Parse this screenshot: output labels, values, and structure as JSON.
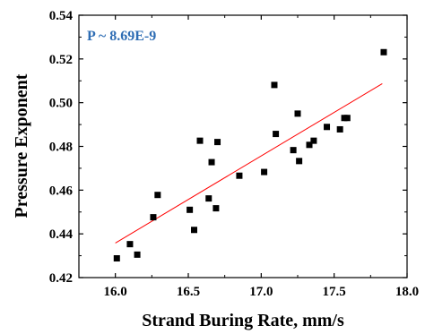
{
  "chart_data": {
    "type": "scatter",
    "xlabel": "Strand Buring Rate, mm/s",
    "ylabel": "Pressure Exponent",
    "annotation": "P ~ 8.69E-9",
    "xlim": [
      15.75,
      18.0
    ],
    "ylim": [
      0.42,
      0.54
    ],
    "x_ticks": [
      "16.0",
      "16.5",
      "17.0",
      "17.5",
      "18.0"
    ],
    "y_ticks": [
      "0.42",
      "0.44",
      "0.46",
      "0.48",
      "0.50",
      "0.52",
      "0.54"
    ],
    "grid": false,
    "series": [
      {
        "points": [
          [
            16.01,
            0.4288
          ],
          [
            16.1,
            0.4353
          ],
          [
            16.15,
            0.4305
          ],
          [
            16.26,
            0.4476
          ],
          [
            16.29,
            0.4578
          ],
          [
            16.51,
            0.451
          ],
          [
            16.54,
            0.4418
          ],
          [
            16.58,
            0.4826
          ],
          [
            16.64,
            0.4562
          ],
          [
            16.66,
            0.4728
          ],
          [
            16.69,
            0.4517
          ],
          [
            16.7,
            0.482
          ],
          [
            16.85,
            0.4666
          ],
          [
            17.02,
            0.4683
          ],
          [
            17.09,
            0.5081
          ],
          [
            17.1,
            0.4857
          ],
          [
            17.22,
            0.4783
          ],
          [
            17.25,
            0.495
          ],
          [
            17.26,
            0.4733
          ],
          [
            17.33,
            0.4807
          ],
          [
            17.36,
            0.4826
          ],
          [
            17.45,
            0.4889
          ],
          [
            17.54,
            0.4878
          ],
          [
            17.57,
            0.493
          ],
          [
            17.59,
            0.493
          ],
          [
            17.84,
            0.5231
          ]
        ],
        "color": "#000000"
      }
    ],
    "fit_line": {
      "x": [
        16.0,
        17.83
      ],
      "y": [
        0.4358,
        0.5087
      ],
      "color": "#ff0000"
    },
    "annotation_color": "#2e6db4"
  }
}
